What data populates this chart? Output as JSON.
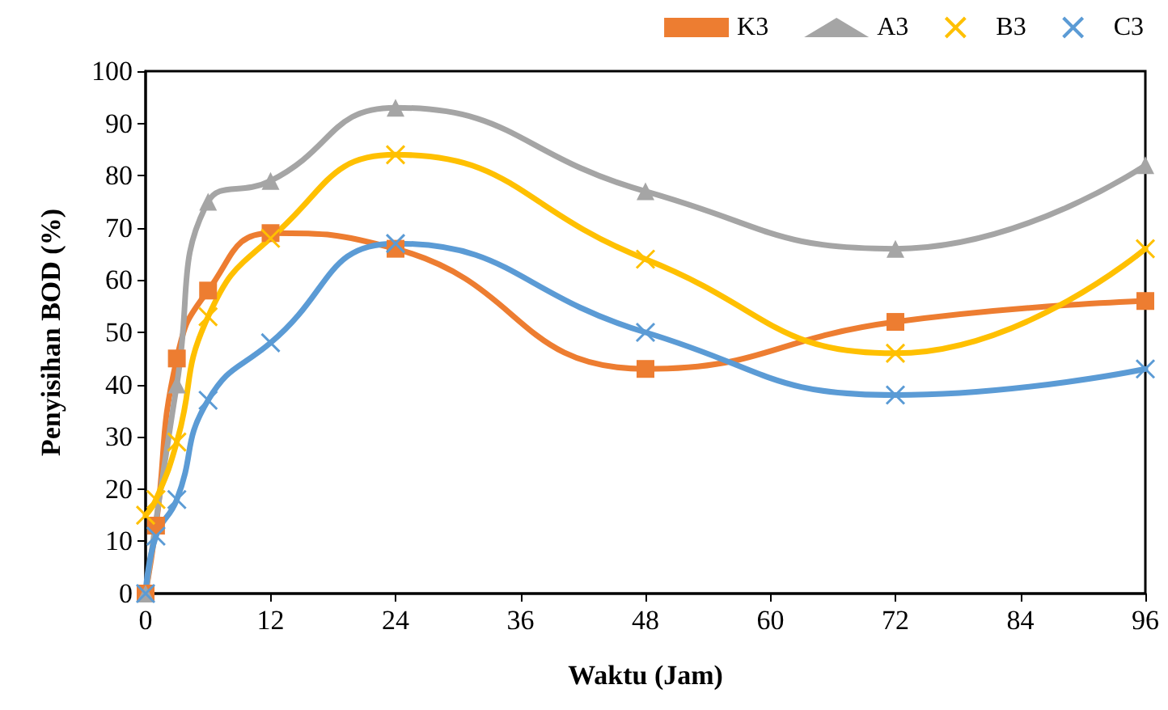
{
  "chart_data": {
    "type": "line",
    "xlabel": "Waktu (Jam)",
    "ylabel": "Penyisihan BOD (%)",
    "xlim": [
      0,
      96
    ],
    "xticks": [
      0,
      12,
      24,
      36,
      48,
      60,
      72,
      84,
      96
    ],
    "ylim": [
      0,
      100
    ],
    "yticks": [
      0,
      10,
      20,
      30,
      40,
      50,
      60,
      70,
      80,
      90,
      100
    ],
    "grid": false,
    "legend": "top right",
    "line_style": "solid",
    "series": [
      {
        "name": "K3",
        "color": "#ed7d31",
        "marker": "square",
        "x": [
          0,
          1,
          3,
          6,
          12,
          24,
          48,
          72,
          96
        ],
        "values": [
          0,
          13,
          45,
          58,
          69,
          66,
          43,
          52,
          56
        ]
      },
      {
        "name": "A3",
        "color": "#a5a5a5",
        "marker": "triangle",
        "x": [
          0,
          3,
          6,
          12,
          24,
          48,
          72,
          96
        ],
        "values": [
          0,
          40,
          75,
          79,
          93,
          77,
          66,
          82
        ]
      },
      {
        "name": "B3",
        "color": "#ffc000",
        "marker": "cross",
        "x": [
          0,
          1,
          3,
          6,
          12,
          24,
          48,
          72,
          96
        ],
        "values": [
          15,
          18,
          29,
          53,
          68,
          84,
          64,
          46,
          66
        ]
      },
      {
        "name": "C3",
        "color": "#5b9bd5",
        "marker": "cross",
        "x": [
          0,
          1,
          3,
          6,
          12,
          24,
          48,
          72,
          96
        ],
        "values": [
          0,
          11,
          18,
          37,
          48,
          67,
          50,
          38,
          43
        ]
      }
    ]
  }
}
